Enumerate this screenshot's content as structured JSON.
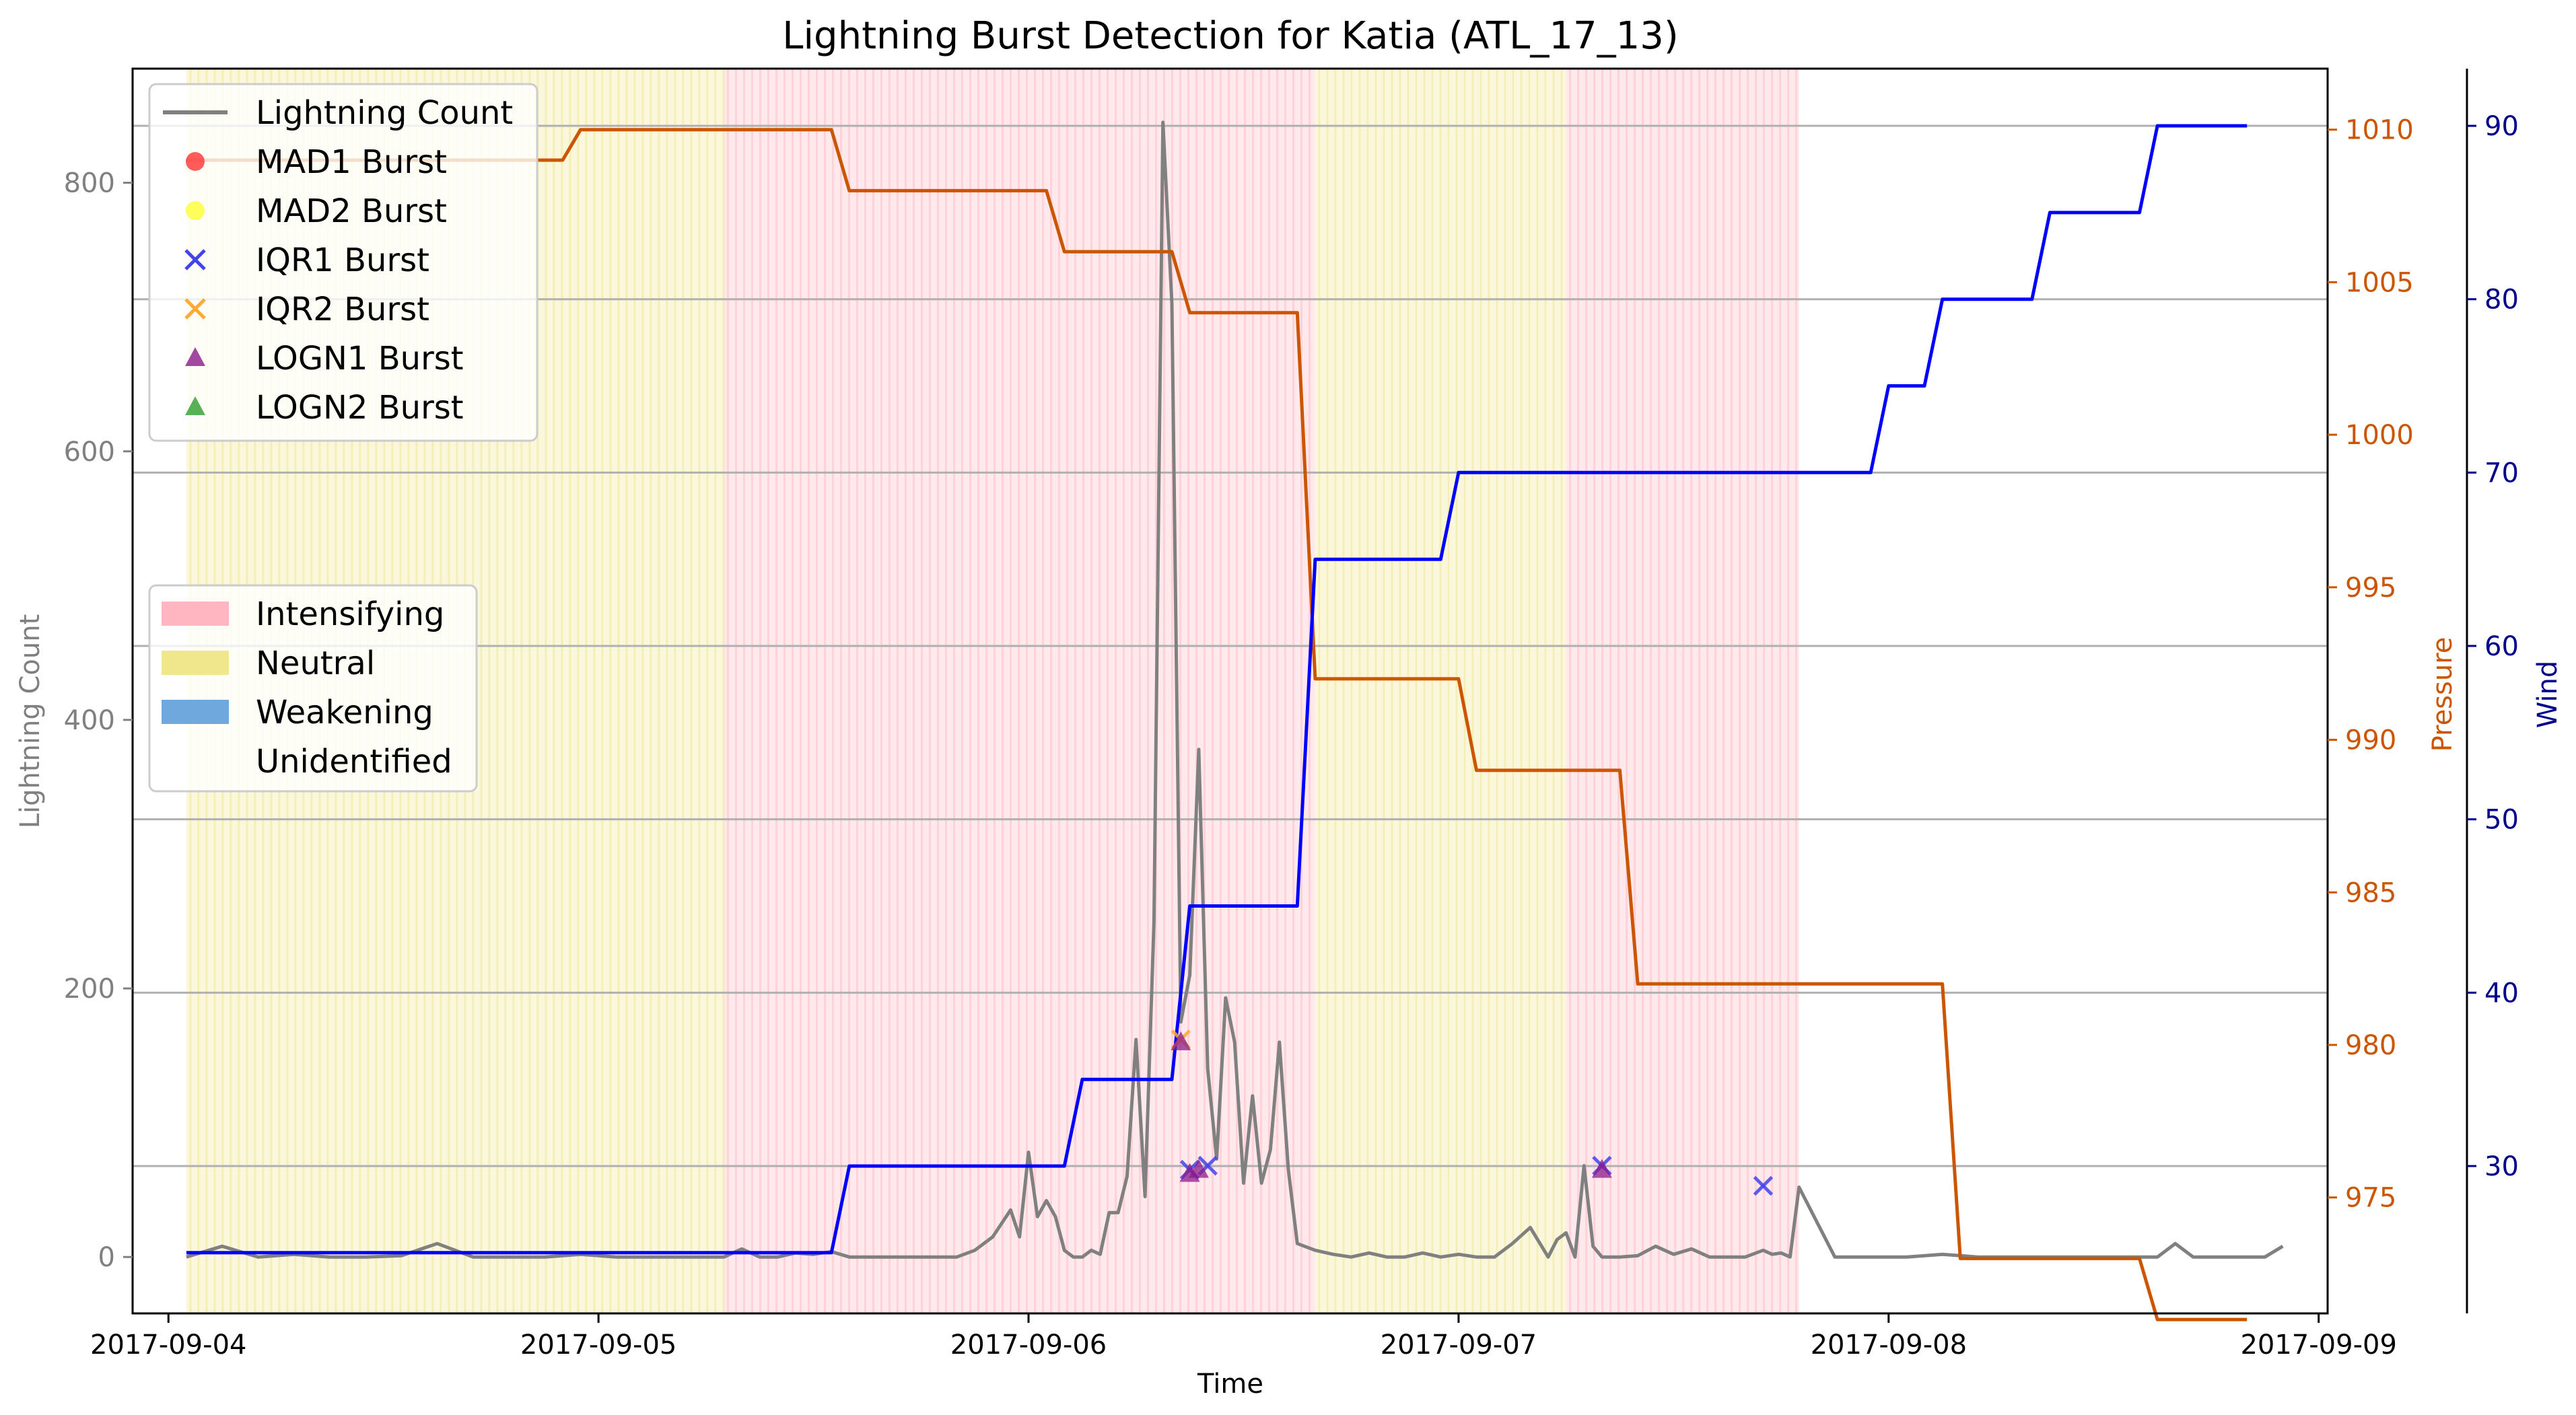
{
  "chart_data": {
    "type": "line",
    "title": "Lightning Burst Detection for Katia (ATL_17_13)",
    "xlabel": "Time",
    "ylabel_left": "Lightning Count",
    "ylabel_pressure": "Pressure",
    "ylabel_wind": "Wind",
    "x_ticks": [
      "2017-09-04",
      "2017-09-05",
      "2017-09-06",
      "2017-09-07",
      "2017-09-08",
      "2017-09-09"
    ],
    "x_range": [
      "2017-09-03T22:00",
      "2017-09-09T00:30"
    ],
    "y_left_ticks": [
      0,
      200,
      400,
      600,
      800
    ],
    "y_left_range": [
      -42,
      885
    ],
    "y_pressure_ticks": [
      975,
      980,
      985,
      990,
      995,
      1000,
      1005,
      1010
    ],
    "y_pressure_range": [
      971.2,
      1012
    ],
    "y_wind_ticks": [
      30,
      40,
      50,
      60,
      70,
      80,
      90
    ],
    "y_wind_range": [
      21.5,
      93.3
    ],
    "grid_note": "horizontal gridlines at wind ticks",
    "colors": {
      "lightning": "#808080",
      "pressure": "#cc5500",
      "wind": "#0000ff",
      "intensifying": "#ffb6c1",
      "neutral": "#f0e68c",
      "weakening": "#6fa8dc",
      "left_axis": "#808080",
      "pressure_axis": "#cc5500",
      "wind_axis": "#00008b"
    },
    "phases": [
      {
        "start": "2017-09-04T01:00",
        "end": "2017-09-05T07:00",
        "phase": "Neutral"
      },
      {
        "start": "2017-09-05T07:00",
        "end": "2017-09-06T16:00",
        "phase": "Intensifying"
      },
      {
        "start": "2017-09-06T16:00",
        "end": "2017-09-07T06:00",
        "phase": "Neutral"
      },
      {
        "start": "2017-09-07T06:00",
        "end": "2017-09-07T19:00",
        "phase": "Intensifying"
      }
    ],
    "series": [
      {
        "name": "Lightning Count",
        "axis": "left",
        "x": [
          "2017-09-04T01:00",
          "2017-09-04T03:00",
          "2017-09-04T05:00",
          "2017-09-04T07:00",
          "2017-09-04T09:00",
          "2017-09-04T11:00",
          "2017-09-04T13:00",
          "2017-09-04T15:00",
          "2017-09-04T17:00",
          "2017-09-04T19:00",
          "2017-09-04T21:00",
          "2017-09-04T23:00",
          "2017-09-05T01:00",
          "2017-09-05T03:00",
          "2017-09-05T05:00",
          "2017-09-05T07:00",
          "2017-09-05T08:00",
          "2017-09-05T09:00",
          "2017-09-05T10:00",
          "2017-09-05T11:00",
          "2017-09-05T12:00",
          "2017-09-05T13:00",
          "2017-09-05T14:00",
          "2017-09-05T16:00",
          "2017-09-05T18:00",
          "2017-09-05T20:00",
          "2017-09-05T21:00",
          "2017-09-05T22:00",
          "2017-09-05T23:00",
          "2017-09-05T23:30",
          "2017-09-06T00:00",
          "2017-09-06T00:30",
          "2017-09-06T01:00",
          "2017-09-06T01:30",
          "2017-09-06T02:00",
          "2017-09-06T02:30",
          "2017-09-06T03:00",
          "2017-09-06T03:30",
          "2017-09-06T04:00",
          "2017-09-06T04:30",
          "2017-09-06T05:00",
          "2017-09-06T05:30",
          "2017-09-06T06:00",
          "2017-09-06T06:30",
          "2017-09-06T07:00",
          "2017-09-06T07:30",
          "2017-09-06T08:00",
          "2017-09-06T08:30",
          "2017-09-06T09:00",
          "2017-09-06T09:30",
          "2017-09-06T10:00",
          "2017-09-06T10:30",
          "2017-09-06T11:00",
          "2017-09-06T11:30",
          "2017-09-06T12:00",
          "2017-09-06T12:30",
          "2017-09-06T13:00",
          "2017-09-06T13:30",
          "2017-09-06T14:00",
          "2017-09-06T14:30",
          "2017-09-06T15:00",
          "2017-09-06T16:00",
          "2017-09-06T17:00",
          "2017-09-06T18:00",
          "2017-09-06T19:00",
          "2017-09-06T20:00",
          "2017-09-06T21:00",
          "2017-09-06T22:00",
          "2017-09-06T23:00",
          "2017-09-07T00:00",
          "2017-09-07T01:00",
          "2017-09-07T02:00",
          "2017-09-07T03:00",
          "2017-09-07T04:00",
          "2017-09-07T05:00",
          "2017-09-07T05:30",
          "2017-09-07T06:00",
          "2017-09-07T06:30",
          "2017-09-07T07:00",
          "2017-09-07T07:30",
          "2017-09-07T08:00",
          "2017-09-07T09:00",
          "2017-09-07T10:00",
          "2017-09-07T11:00",
          "2017-09-07T12:00",
          "2017-09-07T13:00",
          "2017-09-07T14:00",
          "2017-09-07T15:00",
          "2017-09-07T16:00",
          "2017-09-07T17:00",
          "2017-09-07T17:30",
          "2017-09-07T18:00",
          "2017-09-07T18:30",
          "2017-09-07T19:00",
          "2017-09-07T21:00",
          "2017-09-07T23:00",
          "2017-09-08T01:00",
          "2017-09-08T03:00",
          "2017-09-08T05:00",
          "2017-09-08T07:00",
          "2017-09-08T09:00",
          "2017-09-08T11:00",
          "2017-09-08T13:00",
          "2017-09-08T15:00",
          "2017-09-08T16:00",
          "2017-09-08T17:00",
          "2017-09-08T19:00",
          "2017-09-08T21:00",
          "2017-09-08T22:00"
        ],
        "y": [
          0,
          8,
          0,
          2,
          0,
          0,
          1,
          10,
          0,
          0,
          0,
          2,
          0,
          0,
          0,
          0,
          6,
          0,
          0,
          3,
          2,
          4,
          0,
          0,
          0,
          0,
          5,
          15,
          35,
          15,
          78,
          30,
          42,
          30,
          5,
          0,
          0,
          5,
          2,
          33,
          33,
          60,
          162,
          45,
          250,
          845,
          710,
          175,
          210,
          378,
          140,
          73,
          193,
          160,
          55,
          120,
          55,
          80,
          160,
          65,
          10,
          5,
          2,
          0,
          3,
          0,
          0,
          3,
          0,
          2,
          0,
          0,
          10,
          22,
          0,
          13,
          18,
          0,
          68,
          8,
          0,
          0,
          1,
          8,
          2,
          6,
          0,
          0,
          0,
          5,
          2,
          3,
          0,
          52,
          0,
          0,
          0,
          2,
          0,
          0,
          0,
          0,
          0,
          0,
          10,
          0,
          0,
          0,
          8
        ]
      },
      {
        "name": "Pressure",
        "axis": "pressure",
        "x": [
          "2017-09-04T01:00",
          "2017-09-04T22:00",
          "2017-09-04T23:00",
          "2017-09-05T13:00",
          "2017-09-05T14:00",
          "2017-09-06T01:00",
          "2017-09-06T02:00",
          "2017-09-06T08:00",
          "2017-09-06T09:00",
          "2017-09-06T15:00",
          "2017-09-06T16:00",
          "2017-09-07T00:00",
          "2017-09-07T01:00",
          "2017-09-07T09:00",
          "2017-09-07T10:00",
          "2017-09-08T03:00",
          "2017-09-08T04:00",
          "2017-09-08T14:00",
          "2017-09-08T15:00",
          "2017-09-08T20:00"
        ],
        "y": [
          1009,
          1009,
          1010,
          1010,
          1008,
          1008,
          1006,
          1006,
          1004,
          1004,
          992,
          992,
          989,
          989,
          982,
          982,
          973,
          973,
          971,
          971
        ]
      },
      {
        "name": "Wind",
        "axis": "wind",
        "x": [
          "2017-09-04T01:00",
          "2017-09-05T13:00",
          "2017-09-05T14:00",
          "2017-09-06T02:00",
          "2017-09-06T03:00",
          "2017-09-06T08:00",
          "2017-09-06T09:00",
          "2017-09-06T15:00",
          "2017-09-06T16:00",
          "2017-09-06T23:00",
          "2017-09-07T00:00",
          "2017-09-07T23:00",
          "2017-09-08T00:00",
          "2017-09-08T02:00",
          "2017-09-08T03:00",
          "2017-09-08T08:00",
          "2017-09-08T09:00",
          "2017-09-08T14:00",
          "2017-09-08T15:00",
          "2017-09-08T20:00"
        ],
        "y": [
          25,
          25,
          30,
          30,
          35,
          35,
          45,
          45,
          65,
          65,
          70,
          70,
          75,
          75,
          80,
          80,
          85,
          85,
          90,
          90
        ]
      }
    ],
    "bursts": [
      {
        "type": "IQR1 Burst",
        "t": "2017-09-06T09:00",
        "y": 65
      },
      {
        "type": "IQR1 Burst",
        "t": "2017-09-06T10:00",
        "y": 68
      },
      {
        "type": "IQR1 Burst",
        "t": "2017-09-07T08:00",
        "y": 68
      },
      {
        "type": "IQR1 Burst",
        "t": "2017-09-07T17:00",
        "y": 53
      },
      {
        "type": "IQR2 Burst",
        "t": "2017-09-06T08:30",
        "y": 162
      },
      {
        "type": "LOGN1 Burst",
        "t": "2017-09-06T08:30",
        "y": 160
      },
      {
        "type": "LOGN1 Burst",
        "t": "2017-09-06T09:00",
        "y": 62
      },
      {
        "type": "LOGN1 Burst",
        "t": "2017-09-06T09:30",
        "y": 65
      },
      {
        "type": "LOGN1 Burst",
        "t": "2017-09-07T08:00",
        "y": 65
      }
    ],
    "legend_series": [
      {
        "label": "Lightning Count",
        "marker": "line",
        "color": "#808080"
      },
      {
        "label": "MAD1 Burst",
        "marker": "circle",
        "color": "#ff3333"
      },
      {
        "label": "MAD2 Burst",
        "marker": "circle",
        "color": "#ffff33"
      },
      {
        "label": "IQR1 Burst",
        "marker": "x",
        "color": "#4444ee"
      },
      {
        "label": "IQR2 Burst",
        "marker": "x",
        "color": "#ffaa33"
      },
      {
        "label": "LOGN1 Burst",
        "marker": "triangle",
        "color": "#8b1a8b"
      },
      {
        "label": "LOGN2 Burst",
        "marker": "triangle",
        "color": "#2e9c2e"
      }
    ],
    "legend_series_placement": "upper-left",
    "legend_phases": [
      {
        "label": "Intensifying",
        "color": "#ffb6c1"
      },
      {
        "label": "Neutral",
        "color": "#f0e68c"
      },
      {
        "label": "Weakening",
        "color": "#6fa8dc"
      },
      {
        "label": "Unidentified",
        "color": ""
      }
    ],
    "legend_phases_placement": "center-left"
  }
}
